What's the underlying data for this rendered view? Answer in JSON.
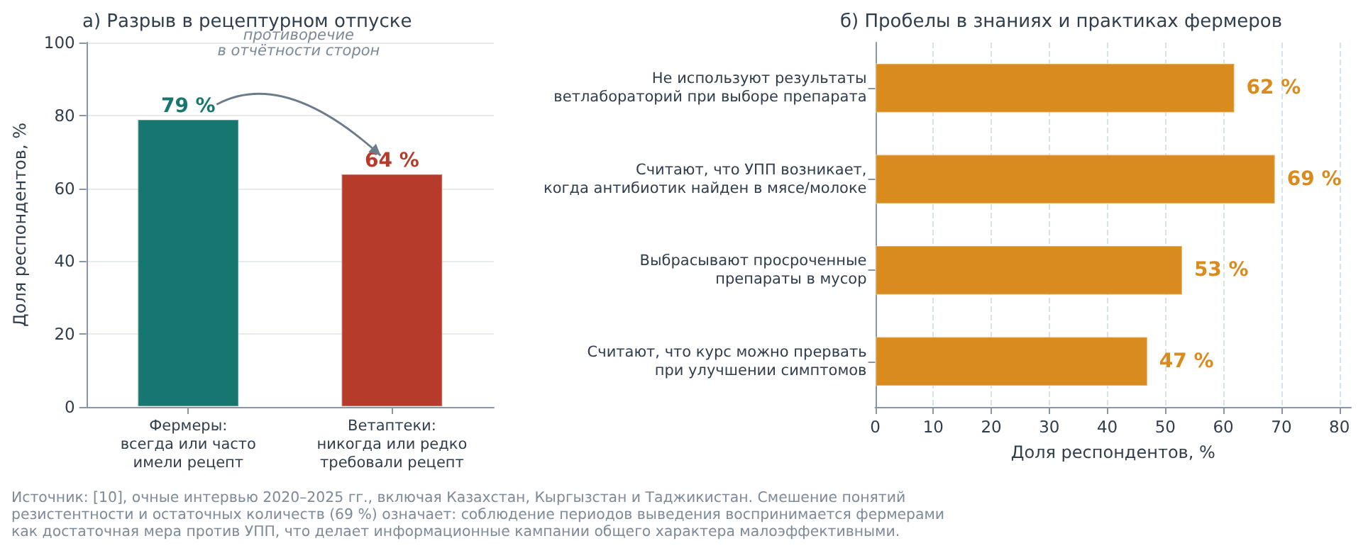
{
  "chart_data": [
    {
      "type": "bar",
      "title": "а) Разрыв в рецептурном отпуске",
      "ylabel": "Доля респондентов, %",
      "categories": [
        "Фермеры:\nвсегда или часто\nимели рецепт",
        "Ветаптеки:\nникогда или редко\nтребовали рецепт"
      ],
      "values": [
        79,
        64
      ],
      "colors": [
        "#17766f",
        "#b63b2b"
      ],
      "value_labels": [
        "79 %",
        "64 %"
      ],
      "ylim": [
        0,
        100
      ],
      "yticks": [
        0,
        20,
        40,
        60,
        80,
        100
      ],
      "grid": "y",
      "annotations": [
        "противоречие\nв отчётности сторон",
        "Источник: [10], очные интервью 2020–2025 гг., включая Казахстан, Кыргызстан и Таджикистан. Смешение понятий\nрезистентности и остаточных количеств (69 %) означает: соблюдение периодов выведения воспринимается фермерами\nкак достаточная мера против УПП, что делает информационные кампании общего характера малоэффективными."
      ]
    },
    {
      "type": "bar",
      "orientation": "horizontal",
      "title": "б) Пробелы в знаниях и практиках фермеров",
      "xlabel": "Доля респондентов, %",
      "categories": [
        "Не используют результаты\nветлабораторий при выборе препарата",
        "Считают, что УПП возникает,\nкогда антибиотик найден в мясе/молоке",
        "Выбрасывают просроченные\nпрепараты в мусор",
        "Считают, что курс можно прервать\nпри улучшении симптомов"
      ],
      "values": [
        62,
        69,
        53,
        47
      ],
      "color": "#d98b1e",
      "value_labels": [
        "62 %",
        "69 %",
        "53 %",
        "47 %"
      ],
      "xlim": [
        0,
        82
      ],
      "xticks": [
        0,
        10,
        20,
        30,
        40,
        50,
        60,
        70,
        80
      ],
      "grid": "x"
    }
  ]
}
